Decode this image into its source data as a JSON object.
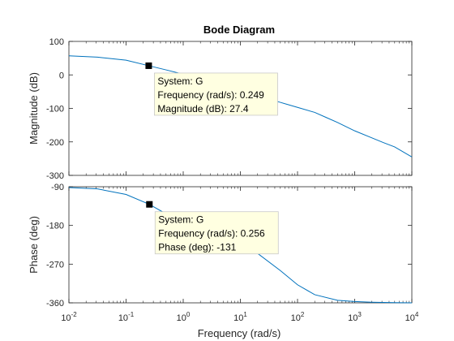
{
  "chart_data": {
    "type": "line",
    "title": "Bode Diagram",
    "xlabel": "Frequency  (rad/s)",
    "x_scale": "log",
    "xlim": [
      0.01,
      10000
    ],
    "x_ticks": [
      {
        "value": 0.01,
        "base": "10",
        "exp": "-2"
      },
      {
        "value": 0.1,
        "base": "10",
        "exp": "-1"
      },
      {
        "value": 1,
        "base": "10",
        "exp": "0"
      },
      {
        "value": 10,
        "base": "10",
        "exp": "1"
      },
      {
        "value": 100,
        "base": "10",
        "exp": "2"
      },
      {
        "value": 1000,
        "base": "10",
        "exp": "3"
      },
      {
        "value": 10000,
        "base": "10",
        "exp": "4"
      }
    ],
    "line_color": "#0072bd",
    "grid": false,
    "panels": [
      {
        "id": "magnitude",
        "ylabel": "Magnitude (dB)",
        "ylim": [
          -300,
          100
        ],
        "y_ticks": [
          100,
          0,
          -100,
          -200,
          -300
        ],
        "y_tick_labels": [
          "100",
          "0",
          "-100",
          "-200",
          "-300"
        ],
        "series": [
          {
            "x": [
              0.01,
              0.0316,
              0.1,
              0.249,
              0.5,
              1,
              2,
              3.16,
              5,
              10,
              20,
              31.6,
              50,
              100,
              200,
              316,
              500,
              1000,
              2000,
              3160,
              5000,
              10000
            ],
            "y": [
              57,
              53,
              44,
              27.4,
              15,
              2,
              -12,
              -22,
              -32,
              -47,
              -62,
              -72,
              -82,
              -97,
              -112,
              -127,
              -142,
              -167,
              -188,
              -202,
              -215,
              -245
            ]
          }
        ],
        "datatip": {
          "x": 0.249,
          "y": 27.4,
          "lines": [
            "System: G",
            "Frequency (rad/s): 0.249",
            "Magnitude (dB): 27.4"
          ]
        }
      },
      {
        "id": "phase",
        "ylabel": "Phase (deg)",
        "ylim": [
          -360,
          -90
        ],
        "y_ticks": [
          -90,
          -180,
          -270,
          -360
        ],
        "y_tick_labels": [
          "-90",
          "-180",
          "-270",
          "-360"
        ],
        "series": [
          {
            "x": [
              0.01,
              0.0316,
              0.1,
              0.256,
              0.5,
              1,
              2,
              5,
              10,
              20,
              50,
              100,
              200,
              500,
              1000,
              2000,
              5000,
              10000
            ],
            "y": [
              -92,
              -95,
              -108,
              -131,
              -153,
              -172,
              -187,
              -206,
              -223,
              -245,
              -285,
              -318,
              -341,
              -354,
              -357,
              -358.5,
              -359.5,
              -360
            ]
          }
        ],
        "datatip": {
          "x": 0.256,
          "y": -131,
          "lines": [
            "System: G",
            "Frequency (rad/s): 0.256",
            "Phase (deg): -131"
          ]
        }
      }
    ]
  }
}
